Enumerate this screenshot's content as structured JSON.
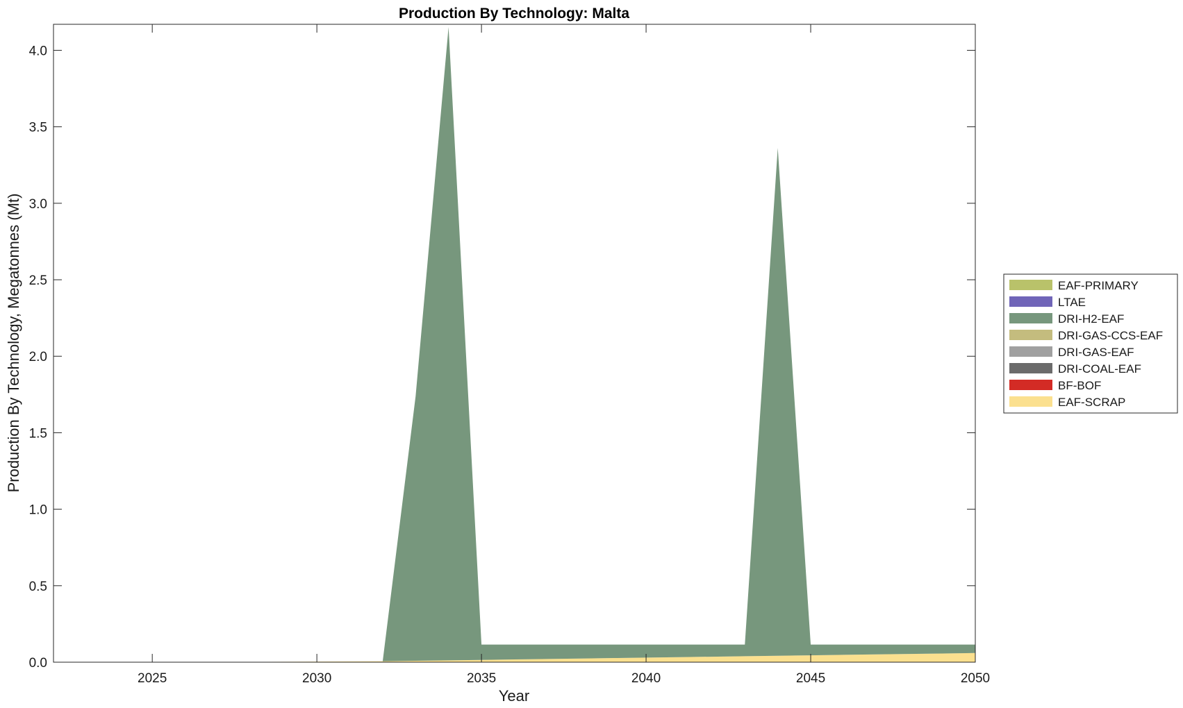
{
  "chart_data": {
    "type": "area",
    "title": "Production By Technology: Malta",
    "xlabel": "Year",
    "ylabel": "Production By Technology, Megatonnes (Mt)",
    "xlim": [
      2022,
      2050
    ],
    "ylim": [
      0,
      4.17
    ],
    "xticks": [
      2025,
      2030,
      2035,
      2040,
      2045,
      2050
    ],
    "yticks": [
      0.0,
      0.5,
      1.0,
      1.5,
      2.0,
      2.5,
      3.0,
      3.5,
      4.0
    ],
    "ytick_labels": [
      "0.0",
      "0.5",
      "1.0",
      "1.5",
      "2.0",
      "2.5",
      "3.0",
      "3.5",
      "4.0"
    ],
    "grid": false,
    "stacked": true,
    "legend_position": "right",
    "x": [
      2022,
      2023,
      2024,
      2025,
      2026,
      2027,
      2028,
      2029,
      2030,
      2031,
      2032,
      2033,
      2034,
      2035,
      2036,
      2037,
      2038,
      2039,
      2040,
      2041,
      2042,
      2043,
      2044,
      2045,
      2046,
      2047,
      2048,
      2049,
      2050
    ],
    "legend_order": [
      "EAF-PRIMARY",
      "LTAE",
      "DRI-H2-EAF",
      "DRI-GAS-CCS-EAF",
      "DRI-GAS-EAF",
      "DRI-COAL-EAF",
      "BF-BOF",
      "EAF-SCRAP"
    ],
    "series": [
      {
        "name": "EAF-SCRAP",
        "color": "#fbe08f",
        "values": [
          0,
          0,
          0,
          0.001,
          0.001,
          0.002,
          0.002,
          0.003,
          0.004,
          0.005,
          0.006,
          0.009,
          0.012,
          0.015,
          0.018,
          0.021,
          0.024,
          0.027,
          0.03,
          0.033,
          0.036,
          0.039,
          0.042,
          0.045,
          0.048,
          0.051,
          0.054,
          0.057,
          0.06
        ]
      },
      {
        "name": "BF-BOF",
        "color": "#d32b25",
        "values": [
          0,
          0,
          0,
          0,
          0,
          0,
          0,
          0,
          0,
          0,
          0,
          0,
          0,
          0,
          0,
          0,
          0,
          0,
          0,
          0,
          0,
          0,
          0,
          0,
          0,
          0,
          0,
          0,
          0
        ]
      },
      {
        "name": "DRI-COAL-EAF",
        "color": "#6b6b6b",
        "values": [
          0,
          0,
          0,
          0,
          0,
          0,
          0,
          0,
          0,
          0,
          0,
          0,
          0,
          0,
          0,
          0,
          0,
          0,
          0,
          0,
          0,
          0,
          0,
          0,
          0,
          0,
          0,
          0,
          0
        ]
      },
      {
        "name": "DRI-GAS-EAF",
        "color": "#a0a0a0",
        "values": [
          0,
          0,
          0,
          0,
          0,
          0,
          0,
          0,
          0,
          0,
          0,
          0,
          0,
          0,
          0,
          0,
          0,
          0,
          0,
          0,
          0,
          0,
          0,
          0,
          0,
          0,
          0,
          0,
          0
        ]
      },
      {
        "name": "DRI-GAS-CCS-EAF",
        "color": "#c4bc7e",
        "values": [
          0,
          0,
          0,
          0,
          0,
          0,
          0,
          0,
          0,
          0,
          0,
          0,
          0,
          0,
          0,
          0,
          0,
          0,
          0,
          0,
          0,
          0,
          0,
          0,
          0,
          0,
          0,
          0,
          0
        ]
      },
      {
        "name": "DRI-H2-EAF",
        "color": "#77977d",
        "values": [
          0,
          0,
          0,
          0,
          0,
          0,
          0,
          0,
          0,
          0,
          0,
          1.73,
          4.14,
          0.1,
          0.097,
          0.094,
          0.091,
          0.088,
          0.085,
          0.082,
          0.079,
          0.076,
          3.32,
          0.07,
          0.067,
          0.064,
          0.061,
          0.058,
          0.055
        ]
      },
      {
        "name": "LTAE",
        "color": "#7065b8",
        "values": [
          0,
          0,
          0,
          0,
          0,
          0,
          0,
          0,
          0,
          0,
          0,
          0,
          0,
          0,
          0,
          0,
          0,
          0,
          0,
          0,
          0,
          0,
          0,
          0,
          0,
          0,
          0,
          0,
          0
        ]
      },
      {
        "name": "EAF-PRIMARY",
        "color": "#b9c26a",
        "values": [
          0,
          0,
          0,
          0,
          0,
          0,
          0,
          0,
          0,
          0,
          0,
          0,
          0,
          0,
          0,
          0,
          0,
          0,
          0,
          0,
          0,
          0,
          0,
          0,
          0,
          0,
          0,
          0,
          0
        ]
      }
    ]
  }
}
